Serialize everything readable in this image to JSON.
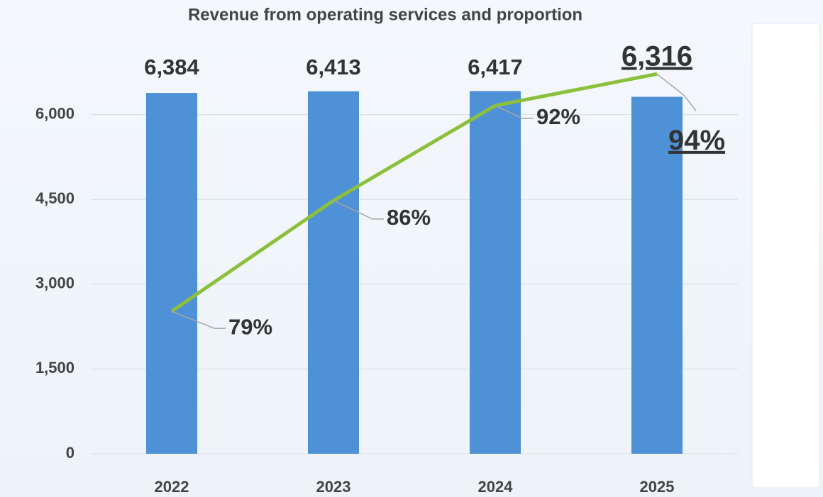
{
  "chart_data": {
    "type": "bar",
    "title": "Revenue from operating services and proportion",
    "categories": [
      "2022",
      "2023",
      "2024",
      "2025"
    ],
    "series": [
      {
        "type": "bar",
        "color": "#4e91d7",
        "values": [
          6384,
          6413,
          6417,
          6316
        ],
        "value_labels": [
          "6,384",
          "6,413",
          "6,417",
          "6,316"
        ]
      },
      {
        "type": "line",
        "axis": "y2",
        "color": "#8cc03c",
        "values": [
          79,
          86,
          92,
          94
        ],
        "value_labels": [
          "79%",
          "86%",
          "92%",
          "94%"
        ]
      }
    ],
    "ylim": [
      0,
      7000
    ],
    "yticks": [
      0,
      {
        "value": 1500,
        "label": "1,500"
      },
      {
        "value": 3000,
        "label": "3,000"
      },
      {
        "value": 4500,
        "label": "4,500"
      },
      {
        "value": 6000,
        "label": "6,000"
      }
    ],
    "y2lim": [
      70,
      95
    ],
    "grid": true
  }
}
